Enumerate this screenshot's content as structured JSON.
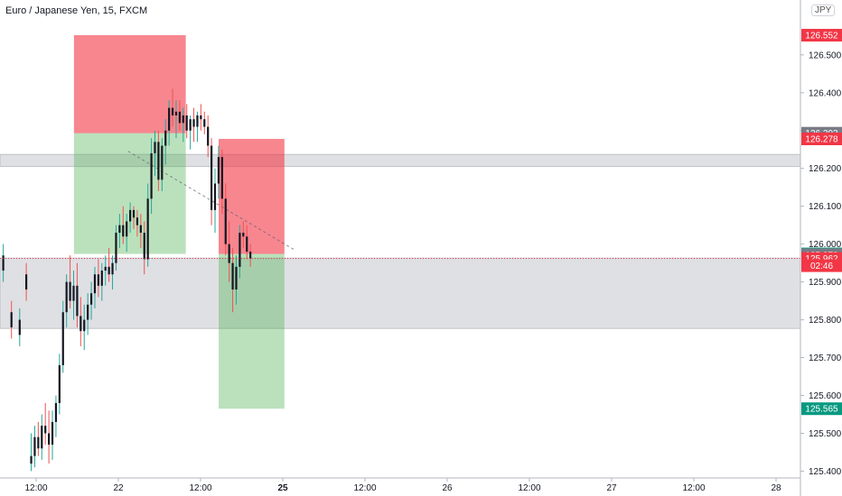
{
  "header": {
    "title": "Euro / Japanese Yen, 15, FXCM",
    "currency": "JPY"
  },
  "chart_data": {
    "type": "candlestick",
    "symbol": "Euro / Japanese Yen",
    "interval": "15",
    "source": "FXCM",
    "y_ticks": [
      "126.500",
      "126.400",
      "126.300",
      "126.200",
      "126.100",
      "126.000",
      "125.900",
      "125.800",
      "125.700",
      "125.600",
      "125.500",
      "125.400"
    ],
    "y_tick_values": [
      126.5,
      126.4,
      126.3,
      126.2,
      126.1,
      126.0,
      125.9,
      125.8,
      125.7,
      125.6,
      125.5,
      125.4
    ],
    "ylim": [
      125.382,
      126.645
    ],
    "x_ticks": [
      "12:00",
      "22",
      "12:00",
      "25",
      "12:00",
      "26",
      "12:00",
      "27",
      "12:00",
      "28"
    ],
    "x_tick_bold": [
      false,
      false,
      false,
      true,
      false,
      false,
      false,
      false,
      false,
      false
    ],
    "price_tags": [
      {
        "label": "126.552",
        "value": 126.552,
        "color": "#f23645"
      },
      {
        "label": "126.293",
        "value": 126.293,
        "color": "#787b86"
      },
      {
        "label": "126.278",
        "value": 126.278,
        "color": "#f23645"
      },
      {
        "label": "125.974",
        "value": 125.974,
        "color": "#089981"
      },
      {
        "label": "125.972",
        "value": 125.972,
        "color": "#787b86"
      },
      {
        "label": "125.962",
        "value": 125.962,
        "color": "#f23645"
      },
      {
        "label": "02:46",
        "value": 125.943,
        "color": "#f23645"
      },
      {
        "label": "125.565",
        "value": 125.565,
        "color": "#089981"
      }
    ],
    "zones": [
      {
        "name": "supply-zone",
        "low": 126.205,
        "high": 126.237,
        "color": "#b2b5be",
        "opacity": 0.42
      },
      {
        "name": "demand-zone",
        "low": 125.777,
        "high": 125.963,
        "color": "#b2b5be",
        "opacity": 0.42
      }
    ],
    "positions": [
      {
        "name": "short-position-1",
        "t_start": 0.73,
        "t_end": 1.41,
        "entry": 126.293,
        "stop": 126.552,
        "target": 125.974
      },
      {
        "name": "short-position-2",
        "t_start": 1.61,
        "t_end": 2.01,
        "entry": 125.974,
        "stop": 126.278,
        "target": 125.565
      }
    ],
    "current_price": 125.962,
    "up_color": "#26a69a",
    "down_color": "#ef5350",
    "body_color": "#131722",
    "candles": [
      [
        125.42,
        125.5,
        125.4,
        125.44
      ],
      [
        125.44,
        125.52,
        125.41,
        125.49
      ],
      [
        125.49,
        125.53,
        125.44,
        125.46
      ],
      [
        125.46,
        125.55,
        125.43,
        125.52
      ],
      [
        125.52,
        125.58,
        125.47,
        125.5
      ],
      [
        125.5,
        125.56,
        125.42,
        125.47
      ],
      [
        125.47,
        125.56,
        125.43,
        125.53
      ],
      [
        125.53,
        125.6,
        125.49,
        125.58
      ],
      [
        125.58,
        125.71,
        125.55,
        125.68
      ],
      [
        125.68,
        125.85,
        125.66,
        125.82
      ],
      [
        125.82,
        125.92,
        125.78,
        125.9
      ],
      [
        125.9,
        125.97,
        125.83,
        125.85
      ],
      [
        125.85,
        125.93,
        125.8,
        125.89
      ],
      [
        125.89,
        125.95,
        125.78,
        125.81
      ],
      [
        125.81,
        125.86,
        125.73,
        125.77
      ],
      [
        125.77,
        125.84,
        125.72,
        125.8
      ],
      [
        125.8,
        125.87,
        125.76,
        125.84
      ],
      [
        125.84,
        125.9,
        125.8,
        125.87
      ],
      [
        125.87,
        125.94,
        125.83,
        125.92
      ],
      [
        125.92,
        125.96,
        125.86,
        125.89
      ],
      [
        125.89,
        125.95,
        125.85,
        125.93
      ],
      [
        125.93,
        125.97,
        125.89,
        125.94
      ],
      [
        125.94,
        125.99,
        125.9,
        125.92
      ],
      [
        125.92,
        125.97,
        125.88,
        125.95
      ],
      [
        125.95,
        126.05,
        125.93,
        126.03
      ],
      [
        126.03,
        126.08,
        125.99,
        126.05
      ],
      [
        126.05,
        126.1,
        126.0,
        126.02
      ],
      [
        126.02,
        126.08,
        125.98,
        126.06
      ],
      [
        126.06,
        126.11,
        126.03,
        126.09
      ],
      [
        126.09,
        126.1,
        126.04,
        126.07
      ],
      [
        126.07,
        126.09,
        126.02,
        126.05
      ],
      [
        126.05,
        126.08,
        125.99,
        126.03
      ],
      [
        126.03,
        126.06,
        125.92,
        125.96
      ],
      [
        125.96,
        126.16,
        125.94,
        126.12
      ],
      [
        126.12,
        126.28,
        126.08,
        126.24
      ],
      [
        126.24,
        126.3,
        126.18,
        126.27
      ],
      [
        126.27,
        126.3,
        126.14,
        126.17
      ],
      [
        126.17,
        126.28,
        126.14,
        126.26
      ],
      [
        126.26,
        126.33,
        126.21,
        126.3
      ],
      [
        126.3,
        126.38,
        126.26,
        126.36
      ],
      [
        126.36,
        126.41,
        126.31,
        126.34
      ],
      [
        126.34,
        126.38,
        126.28,
        126.35
      ],
      [
        126.35,
        126.38,
        126.3,
        126.32
      ],
      [
        126.32,
        126.36,
        126.27,
        126.34
      ],
      [
        126.34,
        126.37,
        126.28,
        126.3
      ],
      [
        126.3,
        126.34,
        126.25,
        126.33
      ],
      [
        126.33,
        126.36,
        126.27,
        126.31
      ],
      [
        126.31,
        126.35,
        126.27,
        126.34
      ],
      [
        126.34,
        126.37,
        126.3,
        126.33
      ],
      [
        126.33,
        126.35,
        126.29,
        126.31
      ],
      [
        126.31,
        126.34,
        126.23,
        126.26
      ],
      [
        126.26,
        126.28,
        126.05,
        126.09
      ],
      [
        126.09,
        126.2,
        126.03,
        126.16
      ],
      [
        126.16,
        126.26,
        126.12,
        126.23
      ],
      [
        126.23,
        126.25,
        126.08,
        126.12
      ],
      [
        126.12,
        126.16,
        125.97,
        126.0
      ],
      [
        126.0,
        126.06,
        125.9,
        125.95
      ],
      [
        125.95,
        125.99,
        125.82,
        125.88
      ],
      [
        125.88,
        125.97,
        125.84,
        125.94
      ],
      [
        125.94,
        126.05,
        125.91,
        126.03
      ],
      [
        126.03,
        126.06,
        125.99,
        126.02
      ],
      [
        126.02,
        126.05,
        125.96,
        125.98
      ],
      [
        125.98,
        126.0,
        125.94,
        125.962
      ]
    ]
  }
}
